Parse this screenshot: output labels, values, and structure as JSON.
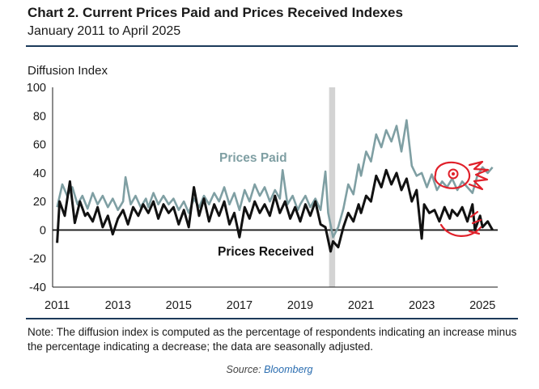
{
  "header": {
    "title": "Chart 2. Current Prices Paid and Prices Received Indexes",
    "subtitle": "January 2011 to April 2025"
  },
  "note": "Note: The diffusion index is computed as the percentage of respondents indicating an increase minus the percentage indicating a decrease; the data are seasonally adjusted.",
  "source": {
    "prefix": "Source:",
    "name": "Bloomberg"
  },
  "colors": {
    "prices_paid": "#7f9fa3",
    "prices_received": "#111111",
    "recession_band": "#d3d3d3",
    "annotation": "#e0202a"
  },
  "chart_data": {
    "type": "line",
    "ylabel": "Diffusion Index",
    "ylim": [
      -40,
      100
    ],
    "yticks": [
      -40,
      -20,
      0,
      20,
      40,
      60,
      80,
      100
    ],
    "xticks": [
      "2011",
      "2013",
      "2015",
      "2017",
      "2019",
      "2021",
      "2023",
      "2025"
    ],
    "xlim": [
      2010.85,
      2025.5
    ],
    "shaded_period": [
      2019.95,
      2020.15
    ],
    "grid": false,
    "annotations": [
      "Prices Paid",
      "Prices Received"
    ],
    "series": [
      {
        "name": "Prices Paid",
        "points": [
          [
            2011.0,
            16
          ],
          [
            2011.17,
            32
          ],
          [
            2011.33,
            24
          ],
          [
            2011.5,
            30
          ],
          [
            2011.67,
            18
          ],
          [
            2011.83,
            24
          ],
          [
            2012.0,
            15
          ],
          [
            2012.17,
            26
          ],
          [
            2012.33,
            18
          ],
          [
            2012.5,
            24
          ],
          [
            2012.67,
            16
          ],
          [
            2012.83,
            22
          ],
          [
            2013.0,
            14
          ],
          [
            2013.17,
            20
          ],
          [
            2013.25,
            37
          ],
          [
            2013.42,
            18
          ],
          [
            2013.58,
            24
          ],
          [
            2013.75,
            16
          ],
          [
            2013.92,
            22
          ],
          [
            2014.0,
            16
          ],
          [
            2014.17,
            26
          ],
          [
            2014.33,
            18
          ],
          [
            2014.5,
            24
          ],
          [
            2014.67,
            18
          ],
          [
            2014.83,
            22
          ],
          [
            2015.0,
            14
          ],
          [
            2015.17,
            20
          ],
          [
            2015.33,
            12
          ],
          [
            2015.5,
            22
          ],
          [
            2015.67,
            16
          ],
          [
            2015.83,
            24
          ],
          [
            2016.0,
            18
          ],
          [
            2016.17,
            26
          ],
          [
            2016.33,
            20
          ],
          [
            2016.5,
            30
          ],
          [
            2016.67,
            18
          ],
          [
            2016.83,
            26
          ],
          [
            2017.0,
            14
          ],
          [
            2017.17,
            28
          ],
          [
            2017.33,
            20
          ],
          [
            2017.5,
            32
          ],
          [
            2017.67,
            24
          ],
          [
            2017.83,
            30
          ],
          [
            2018.0,
            20
          ],
          [
            2018.17,
            28
          ],
          [
            2018.33,
            22
          ],
          [
            2018.42,
            42
          ],
          [
            2018.58,
            18
          ],
          [
            2018.75,
            24
          ],
          [
            2018.92,
            14
          ],
          [
            2019.0,
            18
          ],
          [
            2019.17,
            24
          ],
          [
            2019.33,
            16
          ],
          [
            2019.5,
            22
          ],
          [
            2019.67,
            14
          ],
          [
            2019.83,
            41
          ],
          [
            2019.92,
            12
          ],
          [
            2020.08,
            -5
          ],
          [
            2020.25,
            2
          ],
          [
            2020.42,
            15
          ],
          [
            2020.58,
            32
          ],
          [
            2020.75,
            25
          ],
          [
            2020.92,
            46
          ],
          [
            2021.0,
            38
          ],
          [
            2021.17,
            55
          ],
          [
            2021.33,
            48
          ],
          [
            2021.5,
            67
          ],
          [
            2021.67,
            58
          ],
          [
            2021.83,
            70
          ],
          [
            2022.0,
            62
          ],
          [
            2022.17,
            73
          ],
          [
            2022.33,
            55
          ],
          [
            2022.5,
            77
          ],
          [
            2022.67,
            45
          ],
          [
            2022.83,
            38
          ],
          [
            2023.0,
            40
          ],
          [
            2023.17,
            30
          ],
          [
            2023.33,
            39
          ],
          [
            2023.5,
            28
          ],
          [
            2023.67,
            34
          ],
          [
            2023.83,
            30
          ],
          [
            2024.0,
            36
          ],
          [
            2024.17,
            28
          ],
          [
            2024.33,
            34
          ],
          [
            2024.5,
            30
          ],
          [
            2024.67,
            26
          ],
          [
            2024.83,
            38
          ],
          [
            2025.0,
            44
          ],
          [
            2025.17,
            40
          ],
          [
            2025.33,
            44
          ]
        ]
      },
      {
        "name": "Prices Received",
        "points": [
          [
            2011.0,
            -9
          ],
          [
            2011.08,
            20
          ],
          [
            2011.25,
            10
          ],
          [
            2011.42,
            34
          ],
          [
            2011.58,
            5
          ],
          [
            2011.75,
            20
          ],
          [
            2011.92,
            10
          ],
          [
            2012.0,
            12
          ],
          [
            2012.17,
            6
          ],
          [
            2012.33,
            16
          ],
          [
            2012.5,
            2
          ],
          [
            2012.67,
            10
          ],
          [
            2012.83,
            -3
          ],
          [
            2013.0,
            8
          ],
          [
            2013.17,
            14
          ],
          [
            2013.33,
            4
          ],
          [
            2013.5,
            16
          ],
          [
            2013.67,
            10
          ],
          [
            2013.83,
            18
          ],
          [
            2014.0,
            12
          ],
          [
            2014.17,
            20
          ],
          [
            2014.33,
            8
          ],
          [
            2014.5,
            18
          ],
          [
            2014.67,
            12
          ],
          [
            2014.83,
            16
          ],
          [
            2015.0,
            4
          ],
          [
            2015.17,
            14
          ],
          [
            2015.33,
            2
          ],
          [
            2015.5,
            30
          ],
          [
            2015.67,
            10
          ],
          [
            2015.83,
            22
          ],
          [
            2016.0,
            6
          ],
          [
            2016.17,
            18
          ],
          [
            2016.33,
            10
          ],
          [
            2016.5,
            20
          ],
          [
            2016.67,
            4
          ],
          [
            2016.83,
            12
          ],
          [
            2017.0,
            -5
          ],
          [
            2017.17,
            16
          ],
          [
            2017.33,
            8
          ],
          [
            2017.5,
            20
          ],
          [
            2017.67,
            12
          ],
          [
            2017.83,
            18
          ],
          [
            2018.0,
            10
          ],
          [
            2018.17,
            24
          ],
          [
            2018.33,
            12
          ],
          [
            2018.5,
            20
          ],
          [
            2018.67,
            8
          ],
          [
            2018.83,
            16
          ],
          [
            2019.0,
            6
          ],
          [
            2019.17,
            18
          ],
          [
            2019.33,
            10
          ],
          [
            2019.5,
            20
          ],
          [
            2019.67,
            4
          ],
          [
            2019.83,
            2
          ],
          [
            2020.0,
            -15
          ],
          [
            2020.08,
            -8
          ],
          [
            2020.25,
            -12
          ],
          [
            2020.42,
            2
          ],
          [
            2020.58,
            12
          ],
          [
            2020.75,
            6
          ],
          [
            2020.92,
            18
          ],
          [
            2021.0,
            12
          ],
          [
            2021.17,
            24
          ],
          [
            2021.33,
            20
          ],
          [
            2021.5,
            38
          ],
          [
            2021.67,
            30
          ],
          [
            2021.83,
            42
          ],
          [
            2022.0,
            32
          ],
          [
            2022.17,
            40
          ],
          [
            2022.33,
            28
          ],
          [
            2022.5,
            36
          ],
          [
            2022.67,
            20
          ],
          [
            2022.83,
            28
          ],
          [
            2023.0,
            -6
          ],
          [
            2023.08,
            18
          ],
          [
            2023.25,
            12
          ],
          [
            2023.42,
            14
          ],
          [
            2023.58,
            6
          ],
          [
            2023.75,
            16
          ],
          [
            2023.92,
            8
          ],
          [
            2024.0,
            14
          ],
          [
            2024.17,
            10
          ],
          [
            2024.33,
            16
          ],
          [
            2024.5,
            6
          ],
          [
            2024.67,
            18
          ],
          [
            2024.75,
            0
          ],
          [
            2024.92,
            10
          ],
          [
            2025.0,
            2
          ],
          [
            2025.17,
            6
          ],
          [
            2025.33,
            0
          ]
        ]
      }
    ]
  }
}
